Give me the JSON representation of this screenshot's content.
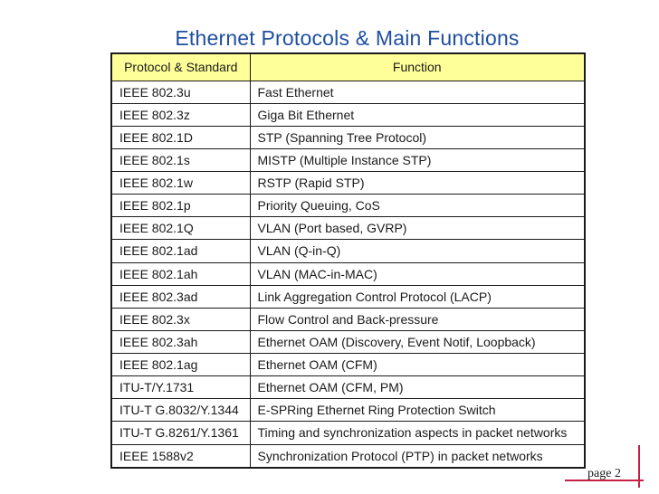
{
  "slide": {
    "title": "Ethernet Protocols & Main Functions",
    "page_label": "page 2"
  },
  "table": {
    "headers": [
      "Protocol & Standard",
      "Function"
    ],
    "rows": [
      [
        "IEEE 802.3u",
        "Fast Ethernet"
      ],
      [
        "IEEE 802.3z",
        "Giga Bit Ethernet"
      ],
      [
        "IEEE 802.1D",
        "STP (Spanning Tree Protocol)"
      ],
      [
        "IEEE 802.1s",
        "MISTP (Multiple Instance STP)"
      ],
      [
        "IEEE 802.1w",
        "RSTP (Rapid STP)"
      ],
      [
        "IEEE 802.1p",
        "Priority Queuing, CoS"
      ],
      [
        "IEEE 802.1Q",
        "VLAN (Port based, GVRP)"
      ],
      [
        "IEEE 802.1ad",
        "VLAN (Q-in-Q)"
      ],
      [
        "IEEE 802.1ah",
        "VLAN (MAC-in-MAC)"
      ],
      [
        "IEEE 802.3ad",
        "Link Aggregation Control Protocol (LACP)"
      ],
      [
        "IEEE 802.3x",
        "Flow Control and Back-pressure"
      ],
      [
        "IEEE 802.3ah",
        "Ethernet OAM (Discovery, Event Notif, Loopback)"
      ],
      [
        "IEEE 802.1ag",
        "Ethernet OAM (CFM)"
      ],
      [
        "ITU-T/Y.1731",
        "Ethernet OAM (CFM, PM)"
      ],
      [
        "ITU-T G.8032/Y.1344",
        "E-SPRing Ethernet Ring Protection Switch"
      ],
      [
        "ITU-T G.8261/Y.1361",
        "Timing and synchronization aspects in packet networks"
      ],
      [
        "IEEE 1588v2",
        "Synchronization Protocol (PTP) in packet networks"
      ]
    ]
  },
  "colors": {
    "title_color": "#1F4FA0",
    "header_bg": "#FFFF99",
    "border_color": "#1A1A1A",
    "text_color": "#1A1A1A",
    "accent_red": "#C32148",
    "page_bg": "#FFFFFF"
  }
}
